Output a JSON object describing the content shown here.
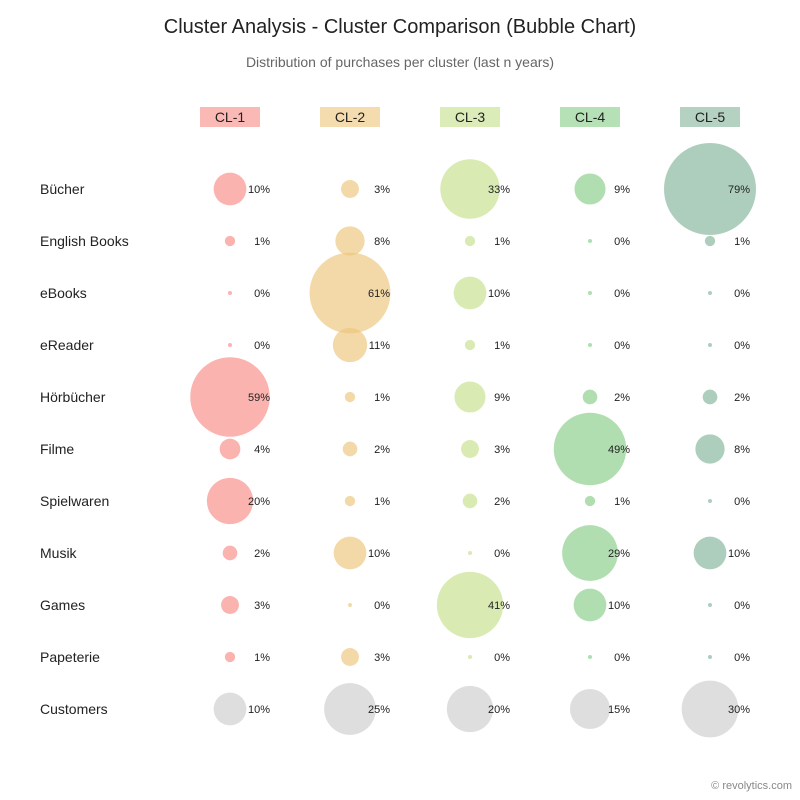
{
  "title": "Cluster Analysis - Cluster Comparison (Bubble Chart)",
  "subtitle": "Distribution of purchases per cluster (last n years)",
  "credit": "© revolytics.com",
  "colors": {
    "CL-1": "#f98b86",
    "CL-2": "#ecc47a",
    "CL-3": "#c5e08a",
    "CL-4": "#85cd85",
    "CL-5": "#82b39a",
    "customers": "#cccccc",
    "text": "#222222",
    "small_text": "#222222"
  },
  "chart_data": {
    "type": "bubble",
    "clusters": [
      "CL-1",
      "CL-2",
      "CL-3",
      "CL-4",
      "CL-5"
    ],
    "categories": [
      "Bücher",
      "English Books",
      "eBooks",
      "eReader",
      "Hörbücher",
      "Filme",
      "Spielwaren",
      "Musik",
      "Games",
      "Papeterie",
      "Customers"
    ],
    "values": [
      [
        10,
        3,
        33,
        9,
        79
      ],
      [
        1,
        8,
        1,
        0,
        1
      ],
      [
        0,
        61,
        10,
        0,
        0
      ],
      [
        0,
        11,
        1,
        0,
        0
      ],
      [
        59,
        1,
        9,
        2,
        2
      ],
      [
        4,
        2,
        3,
        49,
        8
      ],
      [
        20,
        1,
        2,
        1,
        0
      ],
      [
        2,
        10,
        0,
        29,
        10
      ],
      [
        3,
        0,
        41,
        10,
        0
      ],
      [
        1,
        3,
        0,
        0,
        0
      ],
      [
        10,
        25,
        20,
        15,
        30
      ]
    ],
    "unit": "%"
  }
}
